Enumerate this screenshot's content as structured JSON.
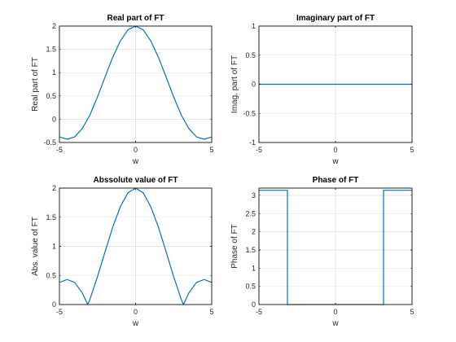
{
  "figure": {
    "background": "#ffffff"
  },
  "chart_data": [
    {
      "type": "line",
      "title": "Real part of FT",
      "xlabel": "w",
      "ylabel": "Real part of FT",
      "xlim": [
        -5,
        5
      ],
      "ylim": [
        -0.5,
        2
      ],
      "grid": true,
      "xticks": [
        -5,
        0,
        5
      ],
      "xtick_labels": [
        "-5",
        "0",
        "5"
      ],
      "yticks": [
        -0.5,
        0,
        0.5,
        1,
        1.5,
        2
      ],
      "ytick_labels": [
        "-0.5",
        "0",
        "0.5",
        "1",
        "1.5",
        "2"
      ],
      "series": [
        {
          "color": "#0072bd",
          "x": [
            -5,
            -4.5,
            -4,
            -3.5,
            -3,
            -2.5,
            -2,
            -1.5,
            -1,
            -0.5,
            0,
            0.5,
            1,
            1.5,
            2,
            2.5,
            3,
            3.5,
            4,
            4.5,
            5
          ],
          "y": [
            -0.38,
            -0.43,
            -0.38,
            -0.2,
            0.09,
            0.48,
            0.91,
            1.33,
            1.68,
            1.92,
            2,
            1.92,
            1.68,
            1.33,
            0.91,
            0.48,
            0.09,
            -0.2,
            -0.38,
            -0.43,
            -0.38
          ]
        }
      ]
    },
    {
      "type": "line",
      "title": "Imaginary part of FT",
      "xlabel": "w",
      "ylabel": "Imag. part of FT",
      "xlim": [
        -5,
        5
      ],
      "ylim": [
        -1,
        1
      ],
      "grid": true,
      "xticks": [
        -5,
        0,
        5
      ],
      "xtick_labels": [
        "-5",
        "0",
        "5"
      ],
      "yticks": [
        -1,
        -0.5,
        0,
        0.5,
        1
      ],
      "ytick_labels": [
        "-1",
        "-0.5",
        "0",
        "0.5",
        "1"
      ],
      "series": [
        {
          "color": "#0072bd",
          "x": [
            -5,
            5
          ],
          "y": [
            0,
            0
          ]
        }
      ]
    },
    {
      "type": "line",
      "title": "Abssolute value of FT",
      "xlabel": "w",
      "ylabel": "Abs. value of FT",
      "xlim": [
        -5,
        5
      ],
      "ylim": [
        0,
        2
      ],
      "grid": true,
      "xticks": [
        -5,
        0,
        5
      ],
      "xtick_labels": [
        "-5",
        "0",
        "5"
      ],
      "yticks": [
        0,
        0.5,
        1,
        1.5,
        2
      ],
      "ytick_labels": [
        "0",
        "0.5",
        "1",
        "1.5",
        "2"
      ],
      "series": [
        {
          "color": "#0072bd",
          "x": [
            -5,
            -4.5,
            -4,
            -3.5,
            -3.14,
            -3,
            -2.5,
            -2,
            -1.5,
            -1,
            -0.5,
            0,
            0.5,
            1,
            1.5,
            2,
            2.5,
            3,
            3.14,
            3.5,
            4,
            4.5,
            5
          ],
          "y": [
            0.38,
            0.43,
            0.38,
            0.2,
            0,
            0.09,
            0.48,
            0.91,
            1.33,
            1.68,
            1.92,
            2,
            1.92,
            1.68,
            1.33,
            0.91,
            0.48,
            0.09,
            0,
            0.2,
            0.38,
            0.43,
            0.38
          ]
        }
      ]
    },
    {
      "type": "line",
      "title": "Phase of FT",
      "xlabel": "w",
      "ylabel": "Phase of FT",
      "xlim": [
        -5,
        5
      ],
      "ylim": [
        0,
        3.2
      ],
      "grid": true,
      "xticks": [
        -5,
        0,
        5
      ],
      "xtick_labels": [
        "-5",
        "0",
        "5"
      ],
      "yticks": [
        0,
        0.5,
        1,
        1.5,
        2,
        2.5,
        3
      ],
      "ytick_labels": [
        "0",
        "0.5",
        "1",
        "1.5",
        "2",
        "2.5",
        "3"
      ],
      "series": [
        {
          "color": "#0072bd",
          "x": [
            -5,
            -3.14,
            -3.14,
            3.14,
            3.14,
            5
          ],
          "y": [
            3.14,
            3.14,
            0,
            0,
            3.14,
            3.14
          ]
        }
      ]
    }
  ]
}
